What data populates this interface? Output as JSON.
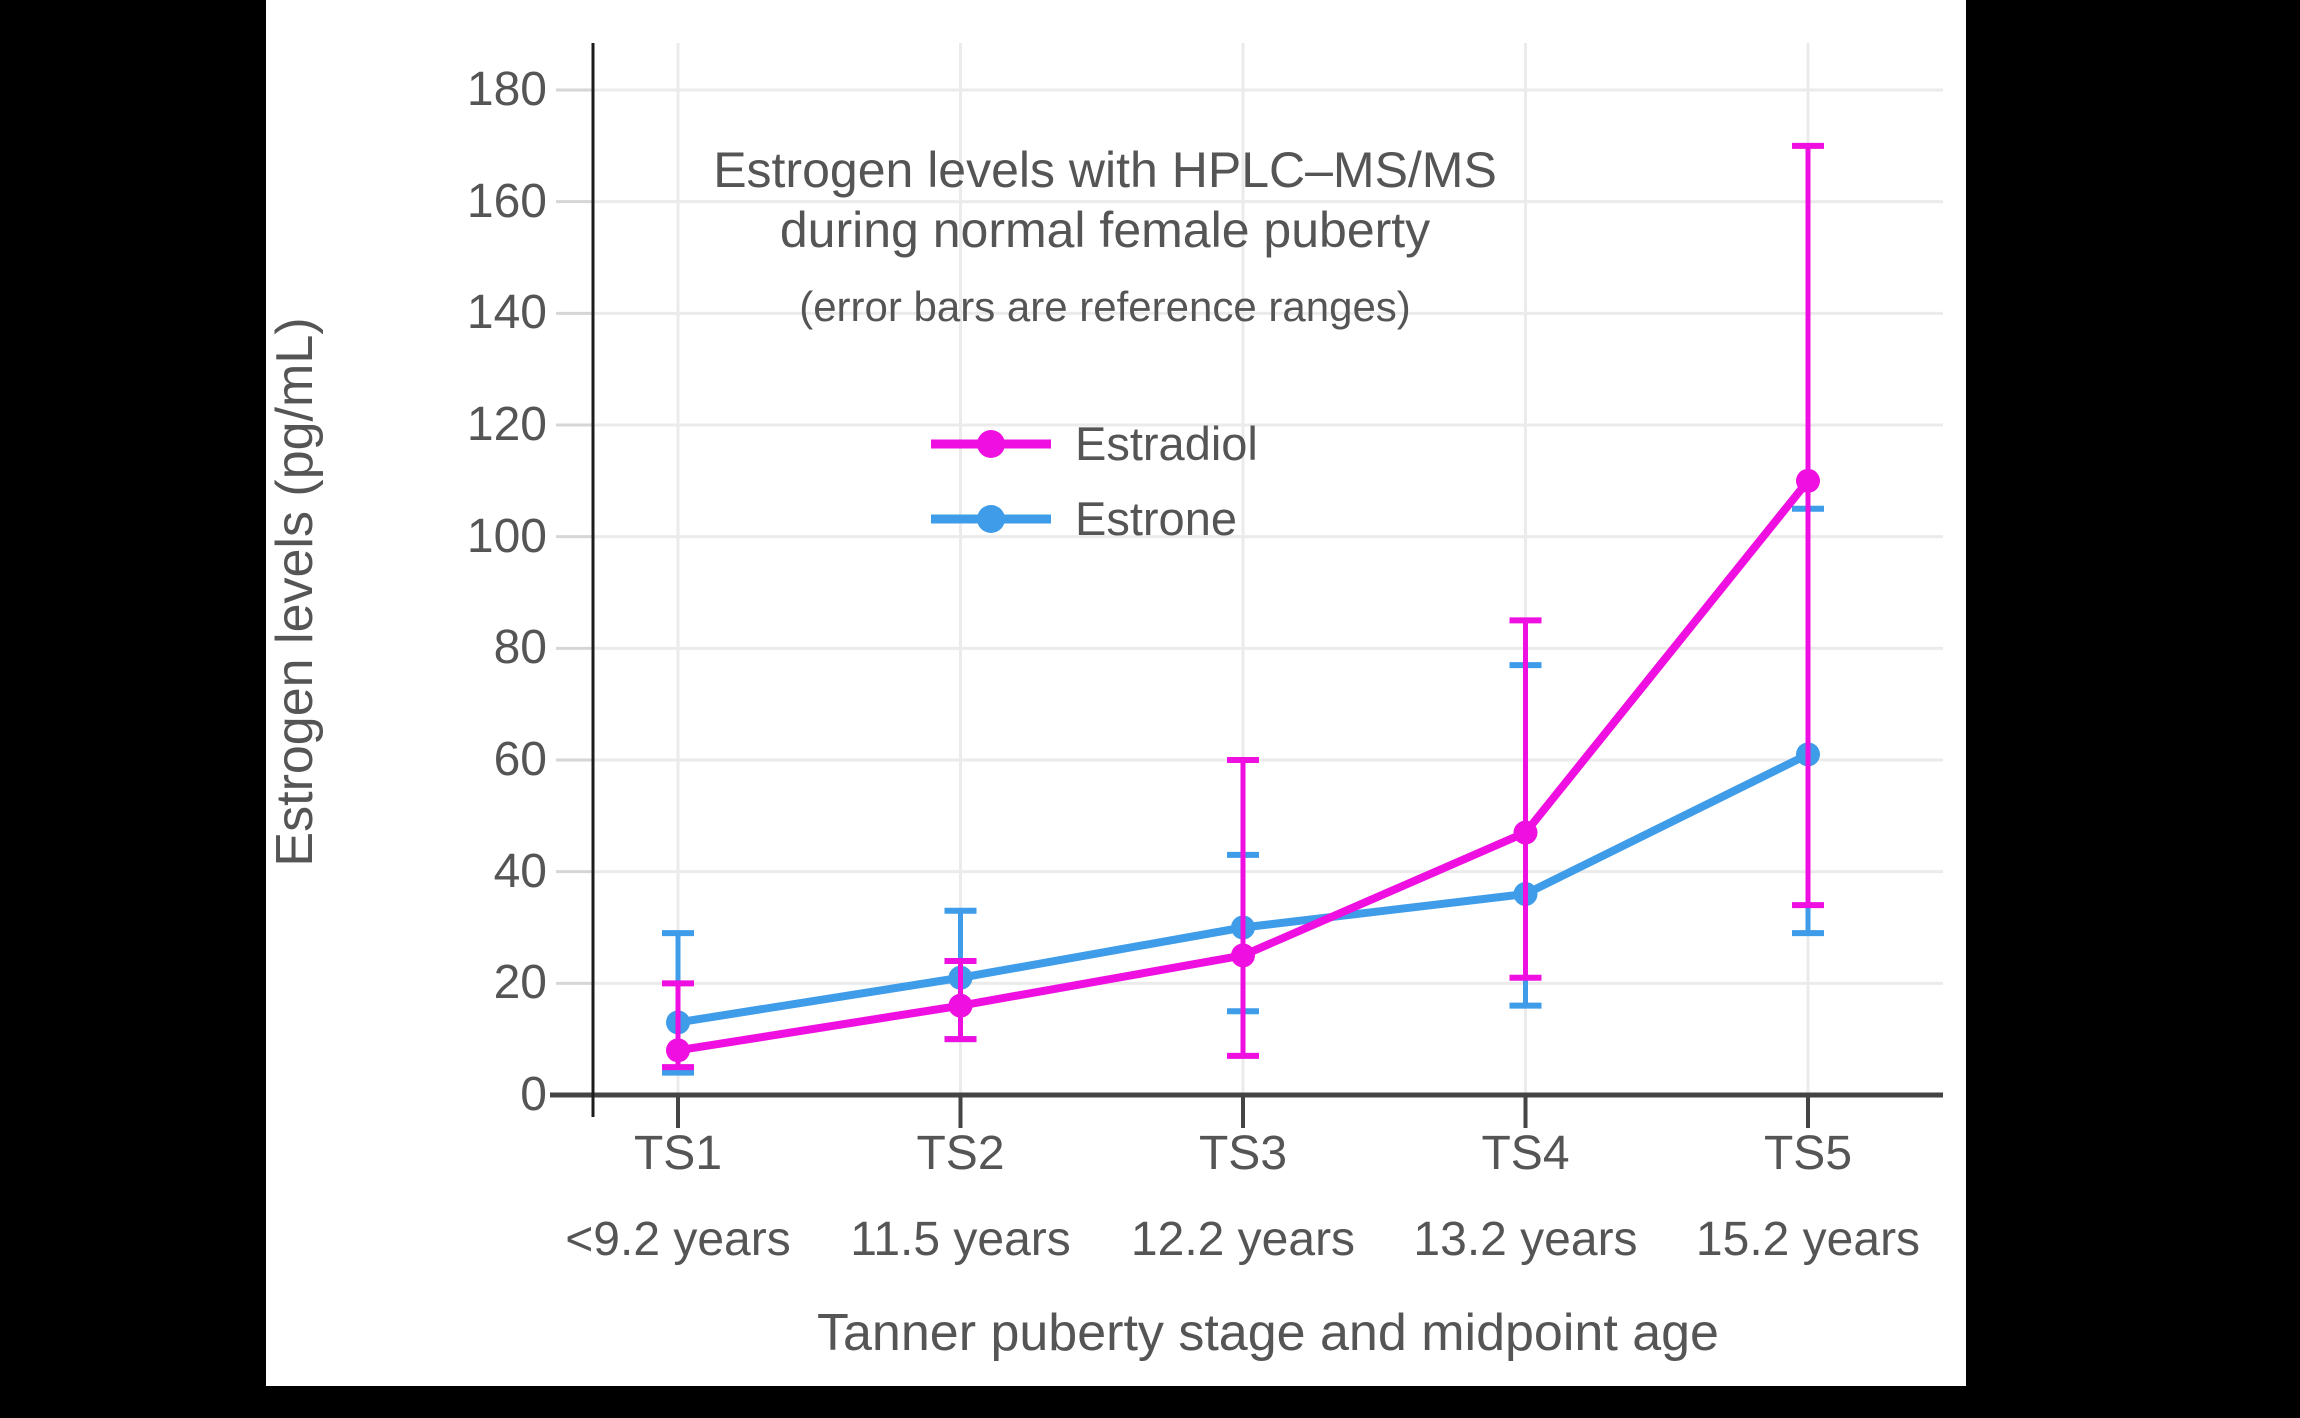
{
  "window": {
    "background": "#000000",
    "card_background": "#ffffff",
    "text_color": "#555555"
  },
  "chart_data": {
    "type": "line",
    "title_lines": [
      "Estrogen levels with HPLC–MS/MS",
      "during normal female puberty"
    ],
    "subtitle": "(error bars are reference ranges)",
    "ylabel": "Estrogen levels (pg/mL)",
    "xlabel": "Tanner puberty stage and midpoint age",
    "categories": [
      "TS1",
      "TS2",
      "TS3",
      "TS4",
      "TS5"
    ],
    "category_sublabels": [
      "<9.2 years",
      "11.5 years",
      "12.2 years",
      "13.2 years",
      "15.2 years"
    ],
    "yticks": [
      0,
      20,
      40,
      60,
      80,
      100,
      120,
      140,
      160,
      180
    ],
    "ylim": [
      0,
      188
    ],
    "grid": true,
    "legend_position": "inside-upper-center",
    "series": [
      {
        "name": "Estradiol",
        "color": "#EE0FE0",
        "values": [
          8,
          16,
          25,
          47,
          110
        ],
        "err_low": [
          5,
          10,
          7,
          21,
          34
        ],
        "err_high": [
          20,
          24,
          60,
          85,
          170
        ]
      },
      {
        "name": "Estrone",
        "color": "#3E9CE9",
        "values": [
          13,
          21,
          30,
          36,
          61
        ],
        "err_low": [
          4,
          10,
          15,
          16,
          29
        ],
        "err_high": [
          29,
          33,
          43,
          77,
          105
        ]
      }
    ]
  }
}
